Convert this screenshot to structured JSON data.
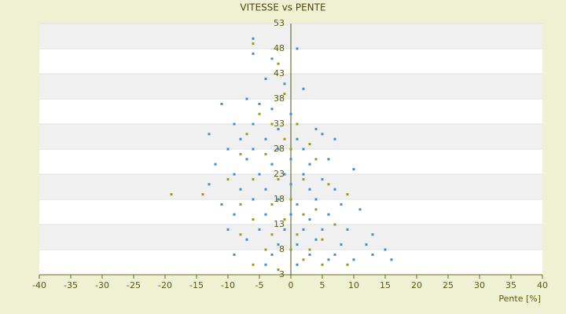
{
  "chart_data": {
    "type": "scatter",
    "title": "VITESSE vs PENTE",
    "x_label": "Pente [%]",
    "xlim": [
      -40,
      40
    ],
    "ylim": [
      3,
      53
    ],
    "xticks": [
      -40,
      -35,
      -30,
      -25,
      -20,
      -15,
      -10,
      -5,
      0,
      5,
      10,
      15,
      20,
      25,
      30,
      35,
      40
    ],
    "yticks": [
      3,
      8,
      13,
      18,
      23,
      28,
      33,
      38,
      43,
      48,
      53
    ],
    "grid": true,
    "series": [
      {
        "color": "#3a8fd8",
        "x": [
          -6,
          -6,
          -3,
          1,
          -4,
          -1,
          2,
          -7,
          -11,
          -5,
          -3,
          0,
          -9,
          -6,
          -13,
          -2,
          4,
          -8,
          -4,
          1,
          5,
          -10,
          -6,
          -2,
          2,
          7,
          -12,
          -7,
          -3,
          0,
          3,
          6,
          -9,
          -5,
          -1,
          2,
          5,
          10,
          -13,
          -8,
          -4,
          0,
          3,
          7,
          -11,
          -6,
          -2,
          1,
          4,
          8,
          -9,
          -4,
          0,
          3,
          6,
          11,
          -10,
          -5,
          -1,
          2,
          5,
          9,
          13,
          -7,
          -2,
          1,
          4,
          8,
          12,
          15,
          -9,
          -3,
          3,
          7,
          10,
          16,
          -4,
          1,
          6,
          13
        ],
        "y": [
          50,
          47,
          46,
          48,
          42,
          41,
          40,
          38,
          37,
          37,
          36,
          35,
          33,
          33,
          31,
          32,
          32,
          30,
          30,
          30,
          31,
          28,
          28,
          28,
          28,
          30,
          25,
          26,
          25,
          26,
          25,
          26,
          23,
          23,
          23,
          23,
          22,
          24,
          21,
          20,
          20,
          21,
          20,
          20,
          17,
          18,
          18,
          17,
          18,
          17,
          15,
          15,
          15,
          14,
          15,
          16,
          12,
          12,
          12,
          12,
          12,
          12,
          11,
          10,
          9,
          9,
          10,
          9,
          9,
          8,
          7,
          7,
          7,
          7,
          6,
          6,
          5,
          5,
          6,
          7
        ]
      },
      {
        "color": "#9a9a1a",
        "x": [
          -6,
          -2,
          -1,
          -5,
          -3,
          1,
          -7,
          -1,
          3,
          -8,
          -4,
          0,
          4,
          -19,
          -14,
          -10,
          -6,
          -2,
          2,
          6,
          -8,
          -3,
          0,
          4,
          9,
          -6,
          -1,
          2,
          7,
          -8,
          -3,
          1,
          5,
          -4,
          0,
          3,
          -6,
          -2,
          2,
          5,
          9
        ],
        "y": [
          49,
          45,
          39,
          35,
          33,
          33,
          31,
          30,
          29,
          27,
          27,
          28,
          26,
          19,
          19,
          22,
          22,
          22,
          22,
          21,
          17,
          17,
          18,
          16,
          19,
          14,
          14,
          15,
          13,
          11,
          11,
          11,
          10,
          8,
          8,
          8,
          5,
          4,
          6,
          5,
          5
        ]
      }
    ]
  }
}
